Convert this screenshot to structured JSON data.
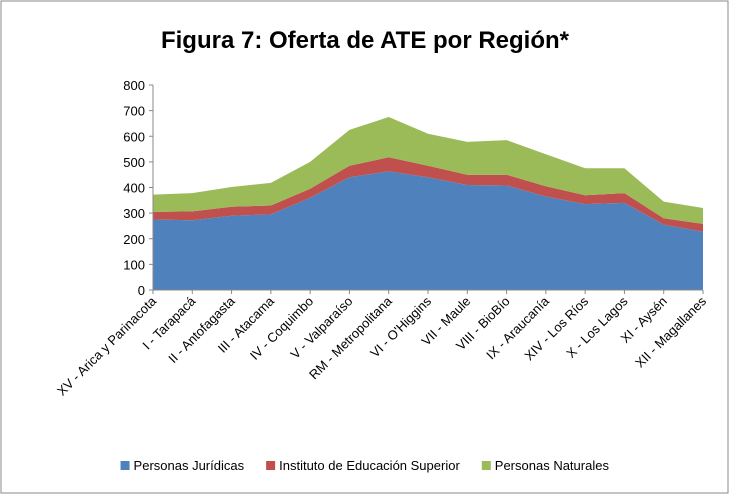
{
  "chart_data": {
    "type": "stacked_area",
    "title": "Figura 7: Oferta de ATE por Región*",
    "categories": [
      "XV - Arica y Parinacota",
      "I - Tarapacá",
      "II - Antofagasta",
      "III - Atacama",
      "IV - Coquimbo",
      "V - Valparaíso",
      "RM - Metropolitana",
      "VI - O'Higgins",
      "VII - Maule",
      "VIII - BioBío",
      "IX - Araucanía",
      "XIV - Los Ríos",
      "X - Los Lagos",
      "XI - Aysén",
      "XII - Magallanes"
    ],
    "series": [
      {
        "name": "Personas Jurídicas",
        "color": "#4f81bd",
        "values": [
          275,
          272,
          290,
          295,
          360,
          440,
          463,
          440,
          410,
          408,
          365,
          335,
          340,
          255,
          228
        ]
      },
      {
        "name": "Instituto de Educación Superior",
        "color": "#c0504d",
        "values": [
          30,
          35,
          35,
          35,
          35,
          45,
          55,
          45,
          40,
          42,
          40,
          35,
          38,
          25,
          30
        ]
      },
      {
        "name": "Personas Naturales",
        "color": "#9bbb59",
        "values": [
          67,
          71,
          77,
          88,
          105,
          140,
          157,
          125,
          128,
          135,
          125,
          105,
          97,
          65,
          62
        ]
      }
    ],
    "ylim": [
      0,
      800
    ],
    "yticks": [
      0,
      100,
      200,
      300,
      400,
      500,
      600,
      700,
      800
    ],
    "legend": "bottom"
  }
}
